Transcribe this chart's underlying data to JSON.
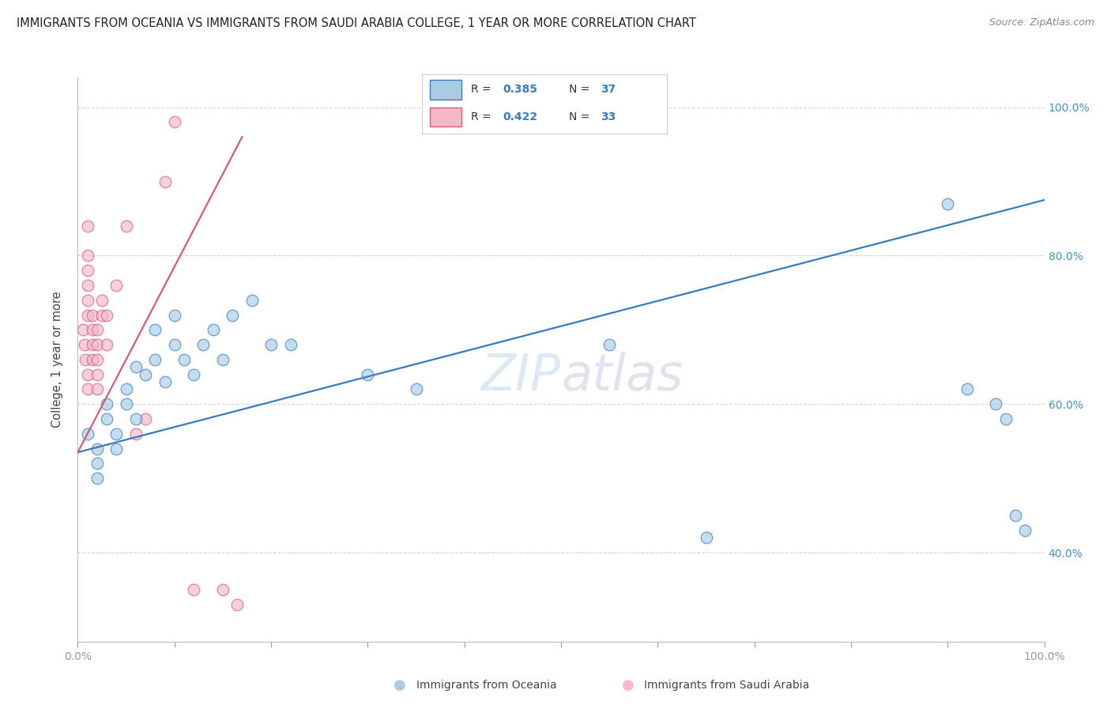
{
  "title": "IMMIGRANTS FROM OCEANIA VS IMMIGRANTS FROM SAUDI ARABIA COLLEGE, 1 YEAR OR MORE CORRELATION CHART",
  "source": "Source: ZipAtlas.com",
  "ylabel": "College, 1 year or more",
  "legend_label1": "Immigrants from Oceania",
  "legend_label2": "Immigrants from Saudi Arabia",
  "R1": "0.385",
  "N1": "37",
  "R2": "0.422",
  "N2": "33",
  "color_blue": "#a8cce4",
  "color_pink": "#f4b8c8",
  "line_blue": "#3a7abf",
  "line_pink": "#d45a7a",
  "blue_x": [
    0.01,
    0.02,
    0.02,
    0.02,
    0.03,
    0.03,
    0.04,
    0.04,
    0.05,
    0.05,
    0.06,
    0.06,
    0.07,
    0.08,
    0.08,
    0.09,
    0.1,
    0.1,
    0.11,
    0.12,
    0.13,
    0.14,
    0.15,
    0.16,
    0.18,
    0.2,
    0.22,
    0.3,
    0.35,
    0.55,
    0.65,
    0.9,
    0.92,
    0.95,
    0.96,
    0.97,
    0.98
  ],
  "blue_y": [
    0.56,
    0.54,
    0.52,
    0.5,
    0.6,
    0.58,
    0.56,
    0.54,
    0.62,
    0.6,
    0.58,
    0.65,
    0.64,
    0.7,
    0.66,
    0.63,
    0.72,
    0.68,
    0.66,
    0.64,
    0.68,
    0.7,
    0.66,
    0.72,
    0.74,
    0.68,
    0.68,
    0.64,
    0.62,
    0.68,
    0.42,
    0.87,
    0.62,
    0.6,
    0.58,
    0.45,
    0.43
  ],
  "pink_x": [
    0.005,
    0.007,
    0.008,
    0.01,
    0.01,
    0.01,
    0.01,
    0.01,
    0.01,
    0.01,
    0.01,
    0.015,
    0.015,
    0.015,
    0.015,
    0.02,
    0.02,
    0.02,
    0.02,
    0.02,
    0.025,
    0.025,
    0.03,
    0.03,
    0.04,
    0.05,
    0.06,
    0.07,
    0.09,
    0.1,
    0.12,
    0.15,
    0.165
  ],
  "pink_y": [
    0.7,
    0.68,
    0.66,
    0.64,
    0.62,
    0.72,
    0.74,
    0.76,
    0.78,
    0.8,
    0.84,
    0.66,
    0.68,
    0.7,
    0.72,
    0.62,
    0.64,
    0.66,
    0.68,
    0.7,
    0.72,
    0.74,
    0.68,
    0.72,
    0.76,
    0.84,
    0.56,
    0.58,
    0.9,
    0.98,
    0.35,
    0.35,
    0.33
  ],
  "blue_line_x": [
    0.0,
    1.0
  ],
  "blue_line_y": [
    0.535,
    0.875
  ],
  "pink_line_x": [
    0.0,
    0.17
  ],
  "pink_line_y": [
    0.535,
    0.96
  ],
  "xmin": 0.0,
  "xmax": 1.0,
  "ymin": 0.28,
  "ymax": 1.04,
  "background_color": "#ffffff",
  "grid_color": "#d0d0d0"
}
